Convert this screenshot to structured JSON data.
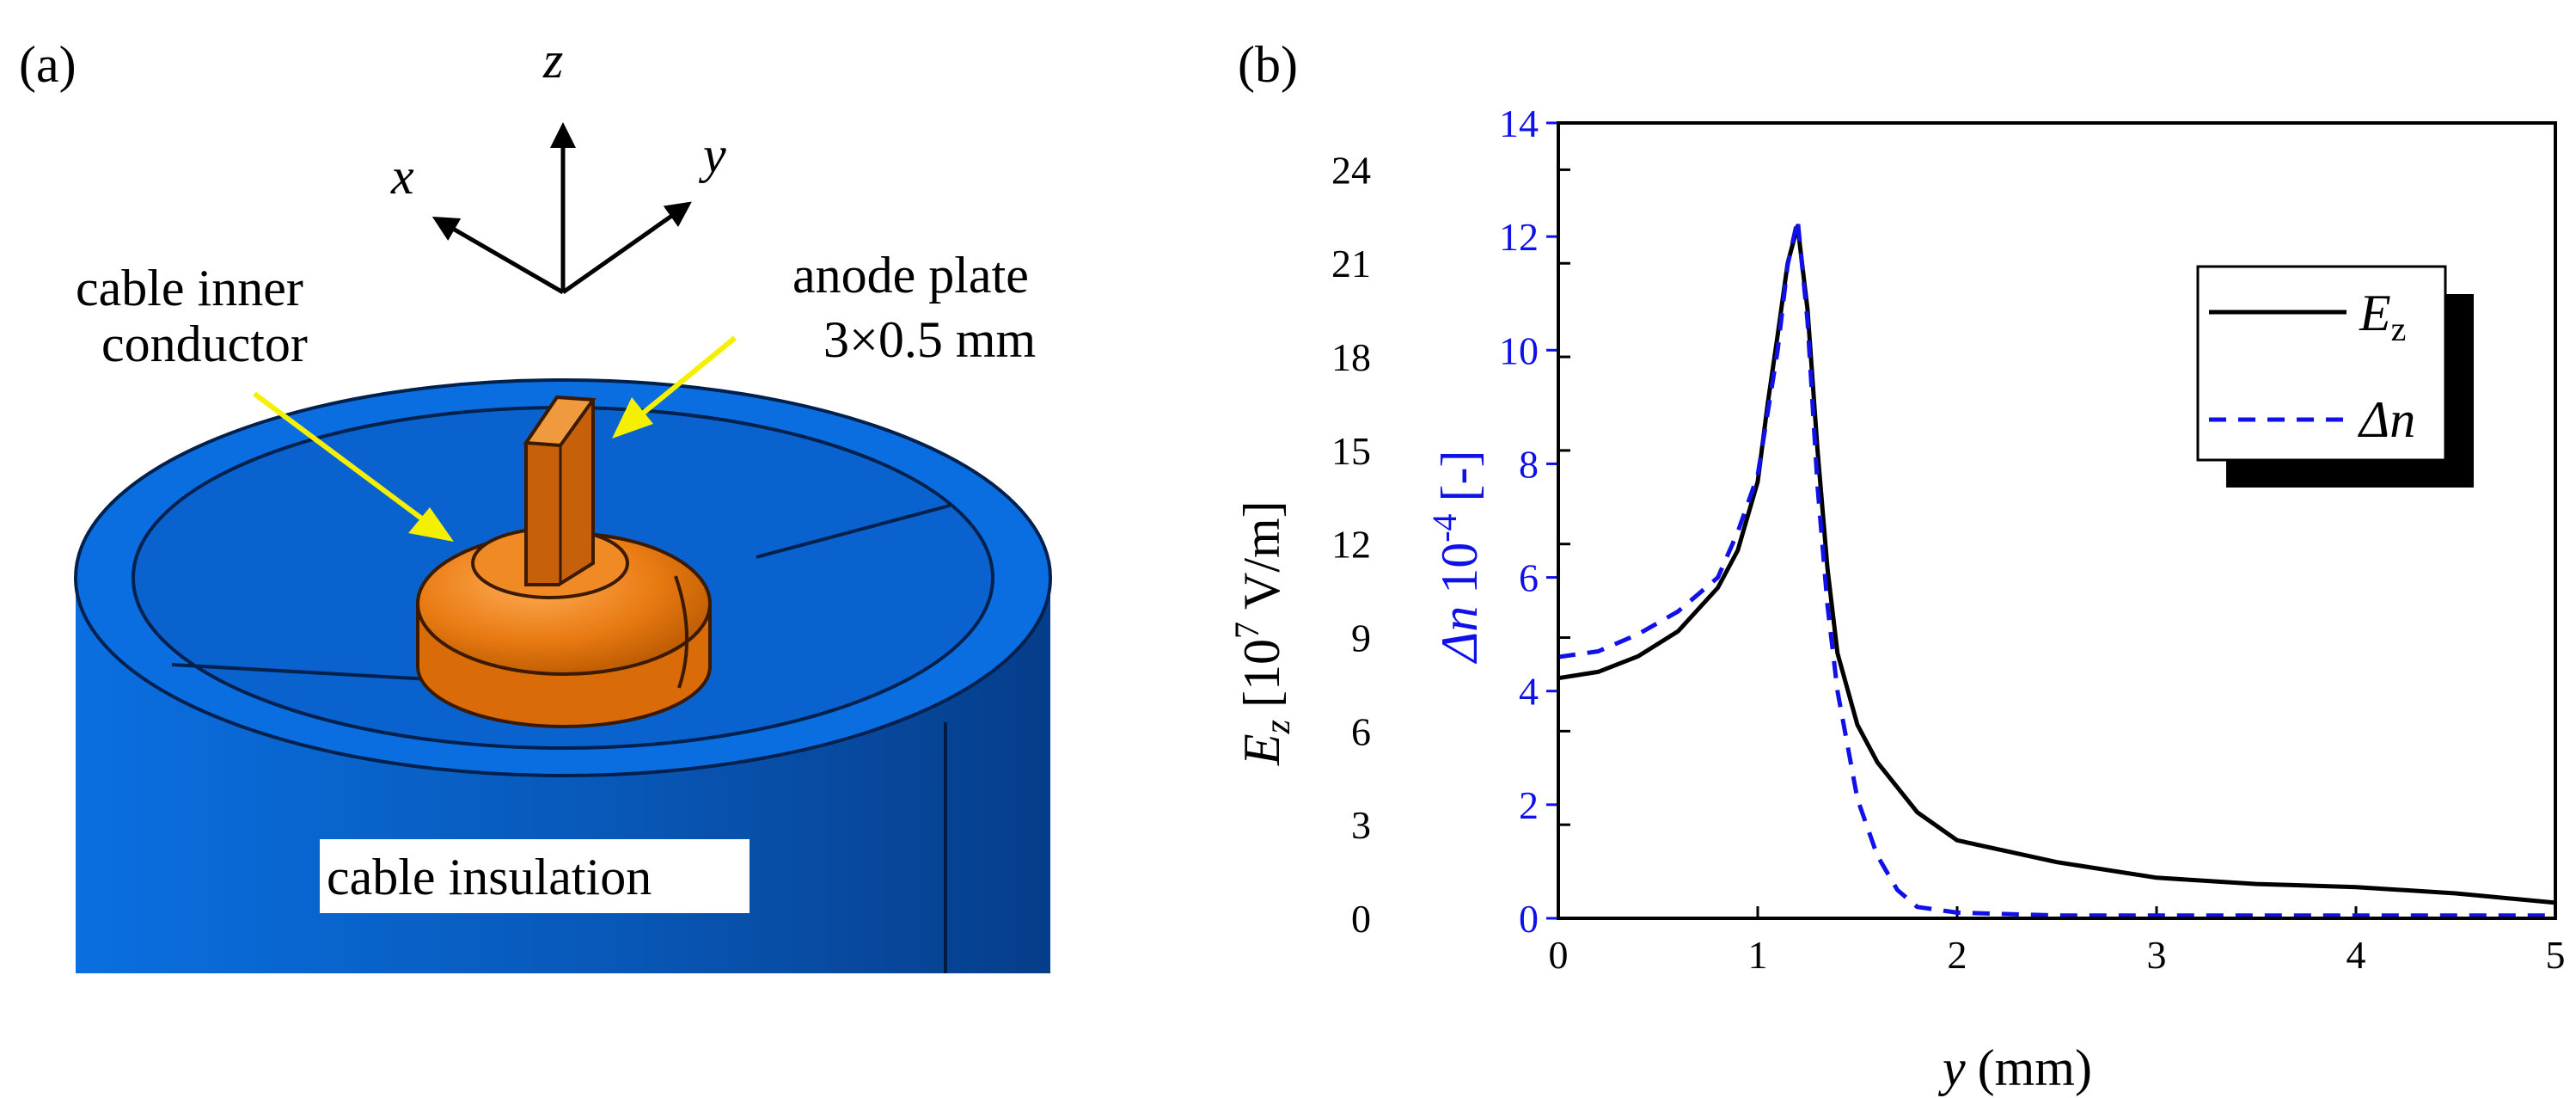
{
  "panel_a": {
    "tag": "(a)",
    "axes": {
      "x": "x",
      "y": "y",
      "z": "z"
    },
    "labels": {
      "inner_conductor_line1": "cable inner",
      "inner_conductor_line2": "conductor",
      "anode_plate": "anode plate",
      "anode_dims": "3×0.5 mm",
      "insulation": "cable insulation"
    },
    "colors": {
      "insulation": "#0a6bd8",
      "conductor": "#e8780f",
      "arrow": "#f4f000"
    }
  },
  "panel_b": {
    "tag": "(b)",
    "colors": {
      "ez": "#000000",
      "dn": "#1010e8"
    }
  },
  "chart_data": {
    "type": "line",
    "title": "",
    "xlabel_italic": "y",
    "xlabel_unit": "(mm)",
    "xlim": [
      0,
      5
    ],
    "x_ticks": [
      "0",
      "1",
      "2",
      "3",
      "4",
      "5"
    ],
    "left_axis": {
      "label_symbol": "E",
      "label_sub": "z",
      "label_rest": "[10",
      "label_sup": "7",
      "label_unit": "V/m]",
      "ylim": [
        0,
        25.5
      ],
      "ticks": [
        "0",
        "3",
        "6",
        "9",
        "12",
        "15",
        "18",
        "21",
        "24"
      ]
    },
    "right_axis": {
      "label_symbol": "Δn",
      "label_rest": "10",
      "label_sup": "-4",
      "label_unit": "[-]",
      "ylim": [
        0,
        14
      ],
      "ticks": [
        "0",
        "2",
        "4",
        "6",
        "8",
        "10",
        "12",
        "14"
      ]
    },
    "legend": {
      "position": "top-right",
      "entries": [
        {
          "symbol": "E",
          "sub": "z",
          "style": "solid"
        },
        {
          "symbol": "Δn",
          "sub": "",
          "style": "dashed"
        }
      ]
    },
    "series": [
      {
        "name": "Ez",
        "axis": "left",
        "unit": "10^7 V/m",
        "style": "solid",
        "x": [
          0,
          0.2,
          0.4,
          0.6,
          0.8,
          0.9,
          1.0,
          1.05,
          1.1,
          1.15,
          1.2,
          1.25,
          1.3,
          1.35,
          1.4,
          1.5,
          1.6,
          1.8,
          2.0,
          2.5,
          3.0,
          3.5,
          4.0,
          4.5,
          5.0
        ],
        "y": [
          7.7,
          7.9,
          8.4,
          9.2,
          10.6,
          11.8,
          14.0,
          16.5,
          18.7,
          21.0,
          22.2,
          19.5,
          15.0,
          11.2,
          8.5,
          6.2,
          5.0,
          3.4,
          2.5,
          1.8,
          1.3,
          1.1,
          1.0,
          0.8,
          0.5
        ]
      },
      {
        "name": "Δn",
        "axis": "right",
        "unit": "10^-4",
        "style": "dashed",
        "x": [
          0,
          0.2,
          0.4,
          0.6,
          0.8,
          0.9,
          1.0,
          1.05,
          1.1,
          1.15,
          1.2,
          1.25,
          1.3,
          1.35,
          1.4,
          1.5,
          1.6,
          1.7,
          1.8,
          2.0,
          2.5,
          3.0,
          3.5,
          4.0,
          4.5,
          5.0
        ],
        "y": [
          4.6,
          4.7,
          5.0,
          5.4,
          6.0,
          6.8,
          7.8,
          8.9,
          10.0,
          11.5,
          12.3,
          10.5,
          7.6,
          5.5,
          4.0,
          2.1,
          1.1,
          0.5,
          0.2,
          0.1,
          0.05,
          0.05,
          0.05,
          0.05,
          0.05,
          0.05
        ]
      }
    ]
  }
}
